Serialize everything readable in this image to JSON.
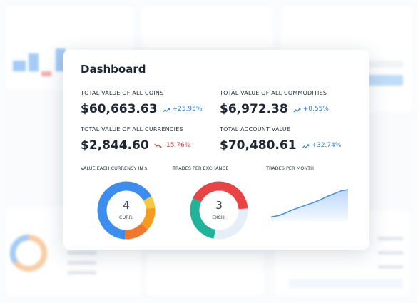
{
  "dashboard": {
    "title": "Dashboard",
    "stats": [
      {
        "label": "TOTAL VALUE OF ALL COINS",
        "value": "$60,663.63",
        "change": "+25.95%",
        "color": "#2f7fe0"
      },
      {
        "label": "TOTAL VALUE OF ALL COMMODITIES",
        "value": "$6,972.38",
        "change": "+0.55%",
        "color": "#2f7fe0"
      },
      {
        "label": "TOTAL VALUE OF ALL CURRENCIES",
        "value": "$2,844.60",
        "change": "-15.76%",
        "color": "#e0393e"
      },
      {
        "label": "TOTAL ACCOUNT VALUE",
        "value": "$70,480.61",
        "change": "+32.74%",
        "color": "#2f7fe0"
      }
    ],
    "charts": [
      {
        "type": "donut",
        "title": "VALUE EACH CURRENCY IN $",
        "center_value": 4,
        "center_label": "CURR.",
        "segments": [
          {
            "color": "#f5c842",
            "value": 7
          },
          {
            "color": "#f39c1f",
            "value": 13
          },
          {
            "color": "#f0772e",
            "value": 14
          },
          {
            "color": "#3b8ef0",
            "value": 66
          }
        ]
      },
      {
        "type": "donut",
        "title": "TRADES PER EXCHANGE",
        "center_value": 3,
        "center_label": "EXCH.",
        "segments": [
          {
            "color": "#ea4343",
            "value": 42
          },
          {
            "color": "#e6eef8",
            "value": 29
          },
          {
            "color": "#1fb39a",
            "value": 29
          }
        ]
      },
      {
        "type": "area",
        "title": "TRADES PER MONTH",
        "color": "#3b8ef0",
        "values": [
          10,
          13,
          19,
          27,
          33,
          39,
          45,
          52,
          60,
          67,
          74,
          77
        ]
      }
    ]
  }
}
